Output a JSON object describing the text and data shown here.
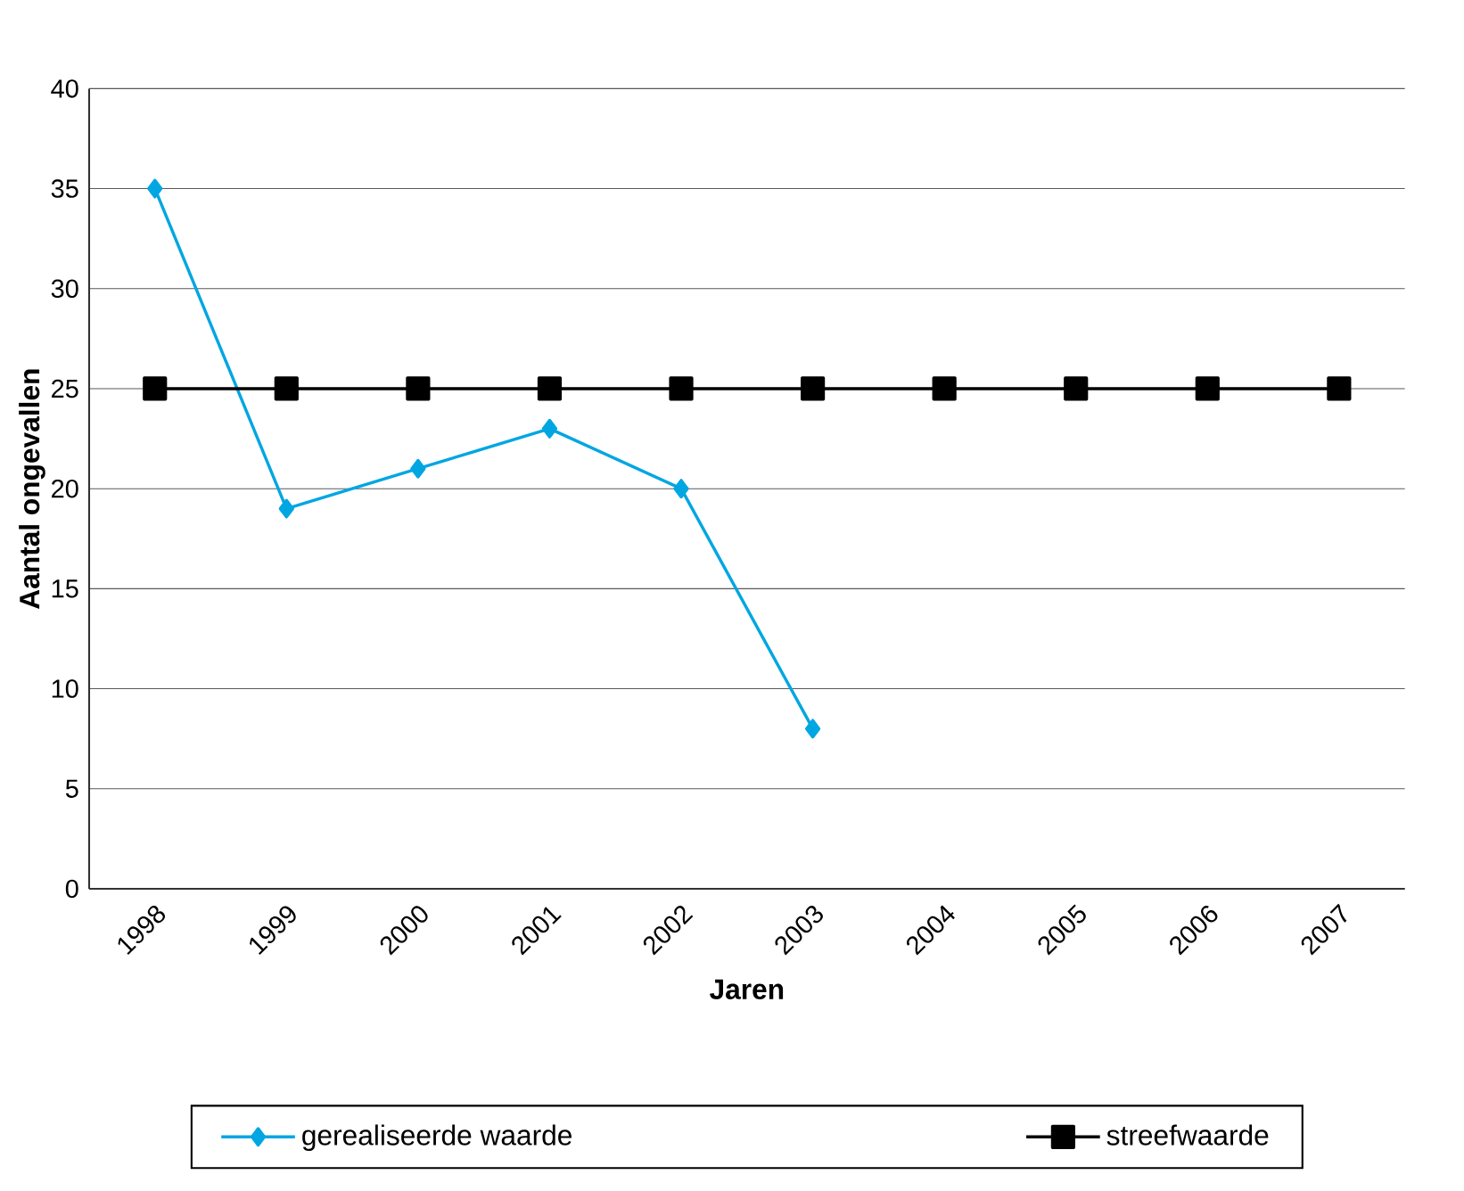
{
  "chart_data": {
    "type": "line",
    "xlabel": "Jaren",
    "ylabel": "Aantal ongevallen",
    "categories": [
      "1998",
      "1999",
      "2000",
      "2001",
      "2002",
      "2003",
      "2004",
      "2005",
      "2006",
      "2007"
    ],
    "series": [
      {
        "name": "gerealiseerde waarde",
        "color": "#00a6e2",
        "marker": "diamond",
        "values": [
          35,
          19,
          21,
          23,
          20,
          8,
          null,
          null,
          null,
          null
        ]
      },
      {
        "name": "streefwaarde",
        "color": "#000000",
        "marker": "square",
        "values": [
          25,
          25,
          25,
          25,
          25,
          25,
          25,
          25,
          25,
          25
        ]
      }
    ],
    "ylim": [
      0,
      40
    ],
    "yticks": [
      0,
      5,
      10,
      15,
      20,
      25,
      30,
      35,
      40
    ],
    "grid": "y",
    "legend": "bottom",
    "line_style": "solid"
  }
}
